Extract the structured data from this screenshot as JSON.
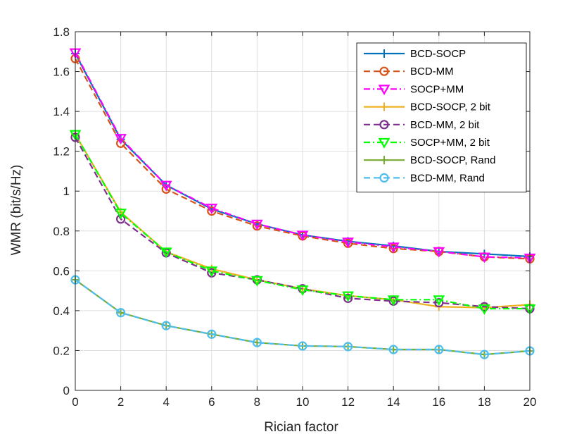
{
  "chart_data": {
    "type": "line",
    "title": "",
    "xlabel": "Rician factor",
    "ylabel": "WMR (bit/s/Hz)",
    "xlim": [
      0,
      20
    ],
    "ylim": [
      0,
      1.8
    ],
    "xticks": [
      0,
      2,
      4,
      6,
      8,
      10,
      12,
      14,
      16,
      18,
      20
    ],
    "yticks": [
      0,
      0.2,
      0.4,
      0.6,
      0.8,
      1,
      1.2,
      1.4,
      1.6,
      1.8
    ],
    "xtick_labels": [
      "0",
      "2",
      "4",
      "6",
      "8",
      "10",
      "12",
      "14",
      "16",
      "18",
      "20"
    ],
    "ytick_labels": [
      "0",
      "0.2",
      "0.4",
      "0.6",
      "0.8",
      "1",
      "1.2",
      "1.4",
      "1.6",
      "1.8"
    ],
    "grid": true,
    "legend_position": "top-right",
    "x": [
      0,
      2,
      4,
      6,
      8,
      10,
      12,
      14,
      16,
      18,
      20
    ],
    "series": [
      {
        "name": "BCD-SOCP",
        "color": "#0072BD",
        "dash": "solid",
        "marker": "plus",
        "values": [
          1.69,
          1.26,
          1.03,
          0.91,
          0.835,
          0.78,
          0.748,
          0.725,
          0.697,
          0.685,
          0.672
        ]
      },
      {
        "name": "BCD-MM",
        "color": "#D95319",
        "dash": "dashed",
        "marker": "circle",
        "values": [
          1.665,
          1.24,
          1.01,
          0.9,
          0.825,
          0.775,
          0.738,
          0.712,
          0.697,
          0.67,
          0.66
        ]
      },
      {
        "name": "SOCP+MM",
        "color": "#FF00FF",
        "dash": "dashdot",
        "marker": "triangle-down",
        "values": [
          1.695,
          1.265,
          1.03,
          0.915,
          0.835,
          0.78,
          0.745,
          0.72,
          0.697,
          0.67,
          0.665
        ]
      },
      {
        "name": "BCD-SOCP, 2 bit",
        "color": "#EDB120",
        "dash": "solid",
        "marker": "plus",
        "values": [
          1.285,
          0.895,
          0.695,
          0.61,
          0.555,
          0.51,
          0.475,
          0.455,
          0.42,
          0.415,
          0.43
        ]
      },
      {
        "name": "BCD-MM, 2 bit",
        "color": "#7E2F8E",
        "dash": "dashed",
        "marker": "circle",
        "values": [
          1.27,
          0.86,
          0.69,
          0.59,
          0.555,
          0.51,
          0.462,
          0.448,
          0.44,
          0.42,
          0.41
        ]
      },
      {
        "name": "SOCP+MM, 2 bit",
        "color": "#00FF00",
        "dash": "dashdot",
        "marker": "triangle-down",
        "values": [
          1.285,
          0.89,
          0.695,
          0.6,
          0.552,
          0.505,
          0.475,
          0.455,
          0.455,
          0.41,
          0.41
        ]
      },
      {
        "name": "BCD-SOCP, Rand",
        "color": "#77AC30",
        "dash": "solid",
        "marker": "plus",
        "values": [
          0.555,
          0.39,
          0.325,
          0.282,
          0.24,
          0.223,
          0.22,
          0.205,
          0.205,
          0.18,
          0.198
        ]
      },
      {
        "name": "BCD-MM, Rand",
        "color": "#4DBEEE",
        "dash": "dashed",
        "marker": "circle",
        "values": [
          0.555,
          0.39,
          0.325,
          0.282,
          0.24,
          0.223,
          0.22,
          0.205,
          0.205,
          0.18,
          0.198
        ]
      }
    ]
  }
}
